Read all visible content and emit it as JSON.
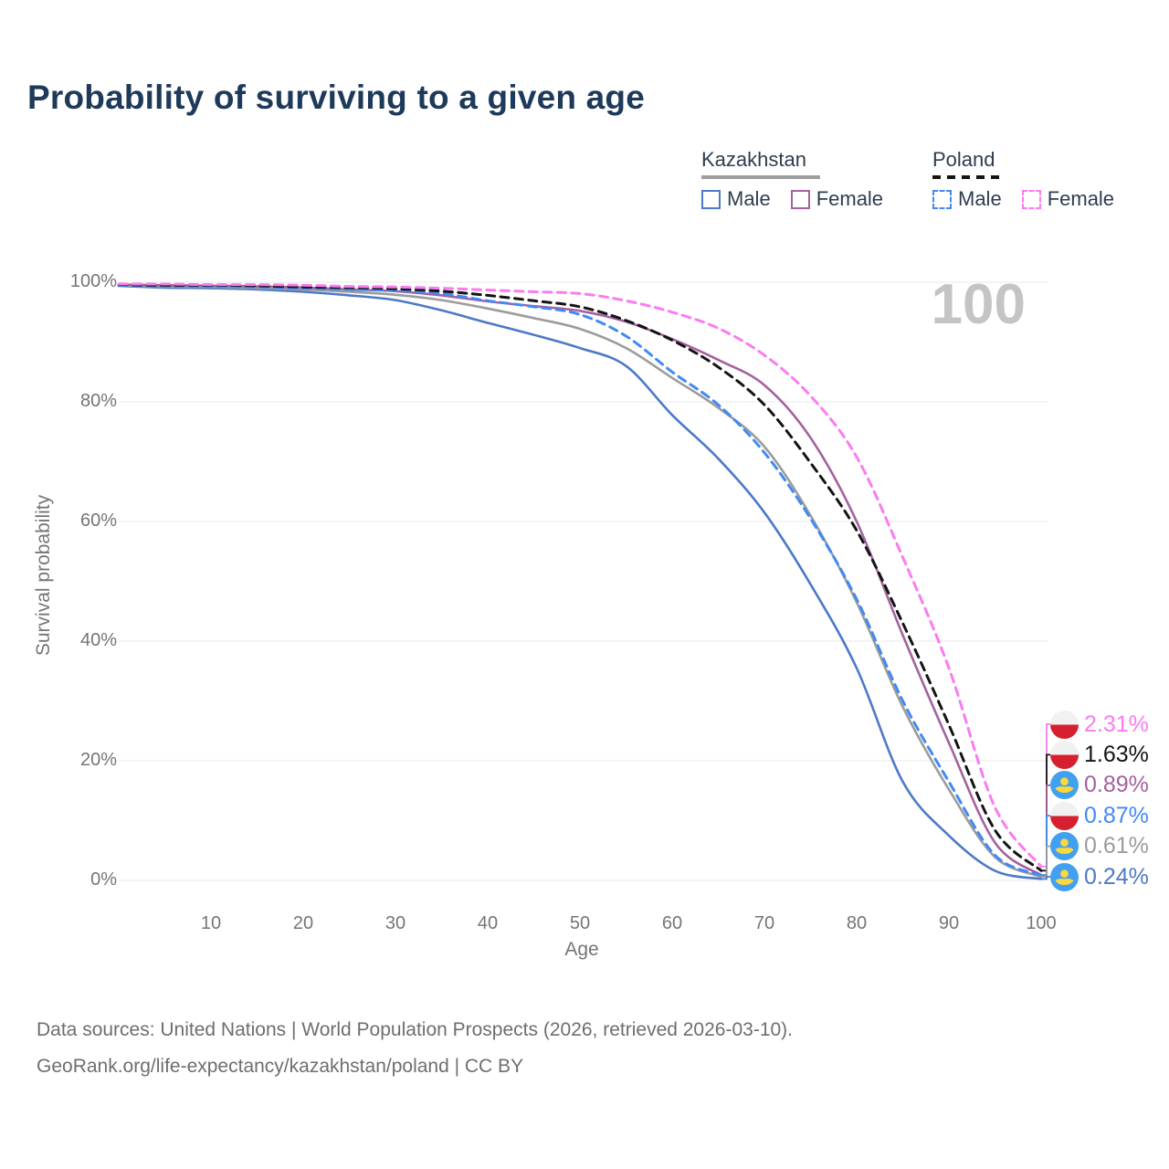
{
  "title": "Probability of surviving to a given age",
  "watermark": "100",
  "legend": {
    "groups": [
      {
        "name": "Kazakhstan",
        "underline_style": "solid",
        "underline_color": "#9e9e9e",
        "items": [
          {
            "label": "Male",
            "color": "#4d79c7",
            "dash": false
          },
          {
            "label": "Female",
            "color": "#a5619e",
            "dash": false
          }
        ]
      },
      {
        "name": "Poland",
        "underline_style": "dashed",
        "underline_color": "#141414",
        "items": [
          {
            "label": "Male",
            "color": "#4189f5",
            "dash": true
          },
          {
            "label": "Female",
            "color": "#fb7bf0",
            "dash": true
          }
        ]
      }
    ]
  },
  "axes": {
    "y_label": "Survival probability",
    "x_label": "Age",
    "y_ticks": [
      {
        "label": "0%",
        "value": 0
      },
      {
        "label": "20%",
        "value": 20
      },
      {
        "label": "40%",
        "value": 40
      },
      {
        "label": "60%",
        "value": 60
      },
      {
        "label": "80%",
        "value": 80
      },
      {
        "label": "100%",
        "value": 100
      }
    ],
    "x_ticks": [
      {
        "label": "10",
        "value": 10
      },
      {
        "label": "20",
        "value": 20
      },
      {
        "label": "30",
        "value": 30
      },
      {
        "label": "40",
        "value": 40
      },
      {
        "label": "50",
        "value": 50
      },
      {
        "label": "60",
        "value": 60
      },
      {
        "label": "70",
        "value": 70
      },
      {
        "label": "80",
        "value": 80
      },
      {
        "label": "90",
        "value": 90
      },
      {
        "label": "100",
        "value": 100
      }
    ]
  },
  "chart_data": {
    "type": "line",
    "title": "Probability of surviving to a given age",
    "xlabel": "Age",
    "ylabel": "Survival probability",
    "xlim": [
      0,
      100
    ],
    "ylim": [
      0,
      100
    ],
    "grid": "horizontal",
    "legend_position": "top-right",
    "x": [
      0,
      5,
      10,
      15,
      20,
      25,
      30,
      35,
      40,
      45,
      50,
      55,
      60,
      65,
      70,
      75,
      80,
      85,
      90,
      95,
      100
    ],
    "series": [
      {
        "name": "Kazakhstan Male",
        "country": "Kazakhstan",
        "sex": "Male",
        "flag": "kazakhstan",
        "color": "#4d79c7",
        "dash": "solid",
        "end_label": "0.24%",
        "values": [
          99.4,
          99.1,
          99.0,
          98.8,
          98.4,
          97.8,
          97.0,
          95.3,
          93.2,
          91.2,
          89.0,
          86.0,
          77.8,
          70.5,
          61.5,
          49.5,
          35.5,
          16.5,
          7.5,
          1.6,
          0.24
        ]
      },
      {
        "name": "Kazakhstan Both sexes",
        "country": "Kazakhstan",
        "sex": "All",
        "flag": "kazakhstan",
        "color": "#9c9c9c",
        "dash": "solid",
        "end_label": "0.61%",
        "values": [
          99.5,
          99.3,
          99.2,
          99.0,
          98.8,
          98.4,
          97.9,
          97.0,
          95.6,
          94.0,
          92.2,
          89.0,
          84.0,
          79.0,
          72.5,
          61.0,
          46.5,
          29.0,
          15.2,
          3.9,
          0.61
        ]
      },
      {
        "name": "Kazakhstan Female",
        "country": "Kazakhstan",
        "sex": "Female",
        "flag": "kazakhstan",
        "color": "#a5619e",
        "dash": "solid",
        "end_label": "0.89%",
        "values": [
          99.6,
          99.5,
          99.4,
          99.3,
          99.1,
          98.8,
          98.5,
          97.8,
          96.8,
          96.0,
          95.2,
          93.4,
          90.5,
          87.0,
          82.8,
          74.0,
          60.0,
          41.0,
          23.0,
          6.3,
          0.89
        ]
      },
      {
        "name": "Poland Male",
        "country": "Poland",
        "sex": "Male",
        "flag": "poland",
        "color": "#4189f5",
        "dash": "dashed",
        "end_label": "0.87%",
        "values": [
          99.5,
          99.4,
          99.3,
          99.2,
          99.0,
          98.8,
          98.6,
          98.1,
          96.9,
          95.9,
          94.6,
          91.0,
          85.0,
          79.5,
          71.5,
          60.5,
          47.0,
          30.0,
          16.5,
          4.2,
          0.87
        ]
      },
      {
        "name": "Poland Both sexes",
        "country": "Poland",
        "sex": "All",
        "flag": "poland",
        "color": "#141414",
        "dash": "dashed",
        "end_label": "1.63%",
        "values": [
          99.6,
          99.5,
          99.5,
          99.4,
          99.2,
          99.1,
          98.9,
          98.5,
          97.8,
          96.9,
          95.9,
          93.6,
          90.3,
          85.8,
          79.5,
          69.8,
          58.5,
          43.0,
          26.0,
          8.4,
          1.63
        ]
      },
      {
        "name": "Poland Female",
        "country": "Poland",
        "sex": "Female",
        "flag": "poland",
        "color": "#fb7bf0",
        "dash": "dashed",
        "end_label": "2.31%",
        "values": [
          99.7,
          99.7,
          99.6,
          99.6,
          99.5,
          99.3,
          99.2,
          99.0,
          98.7,
          98.4,
          98.1,
          96.9,
          95.0,
          92.3,
          87.8,
          81.0,
          70.8,
          54.0,
          35.5,
          12.2,
          2.31
        ]
      }
    ]
  },
  "footer": {
    "line1": "Data sources: United Nations | World Population Prospects (2026, retrieved 2026-03-10).",
    "line2": "GeoRank.org/life-expectancy/kazakhstan/poland | CC BY"
  }
}
